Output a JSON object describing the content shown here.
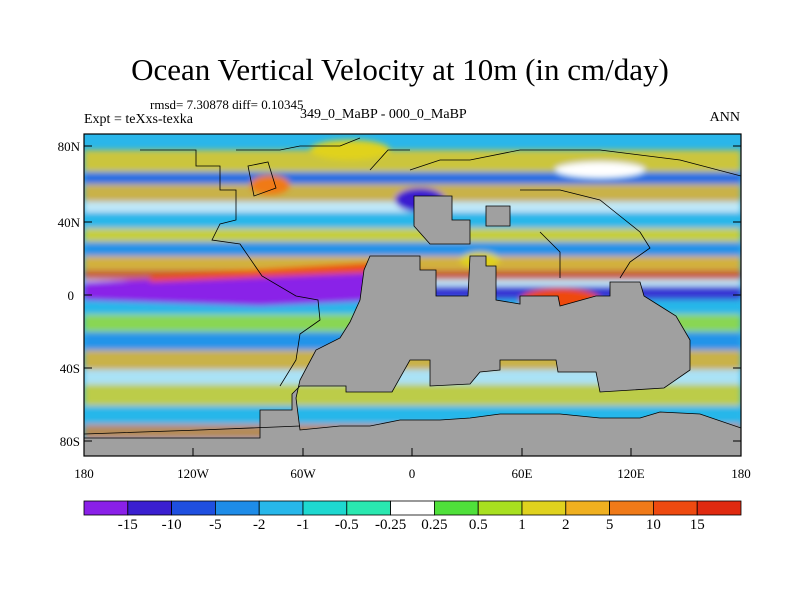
{
  "title": "Ocean Vertical Velocity at 10m (in cm/day)",
  "stats": "rmsd= 7.30878 diff= 0.10345",
  "experiment": "Expt = teXxs-texka",
  "comparison": "349_0_MaBP - 000_0_MaBP",
  "season": "ANN",
  "axes": {
    "y_ticks": [
      "80N",
      "40N",
      "0",
      "40S",
      "80S"
    ],
    "x_ticks": [
      "180",
      "120W",
      "60W",
      "0",
      "60E",
      "120E",
      "180"
    ]
  },
  "colorbar": {
    "labels": [
      "-15",
      "-10",
      "-5",
      "-2",
      "-1",
      "-0.5",
      "-0.25",
      "0.25",
      "0.5",
      "1",
      "2",
      "5",
      "10",
      "15"
    ],
    "colors": [
      "#8a20e8",
      "#3a1fd0",
      "#1f4fe0",
      "#1e8ce8",
      "#27b7ea",
      "#1ed8d0",
      "#2ae8b0",
      "#ffffff",
      "#4fe03a",
      "#a8e020",
      "#e0d21e",
      "#f0b020",
      "#f07a18",
      "#ee4a10",
      "#e02a10"
    ]
  },
  "colors": {
    "land": "#a0a0a0",
    "coast": "#000000"
  }
}
